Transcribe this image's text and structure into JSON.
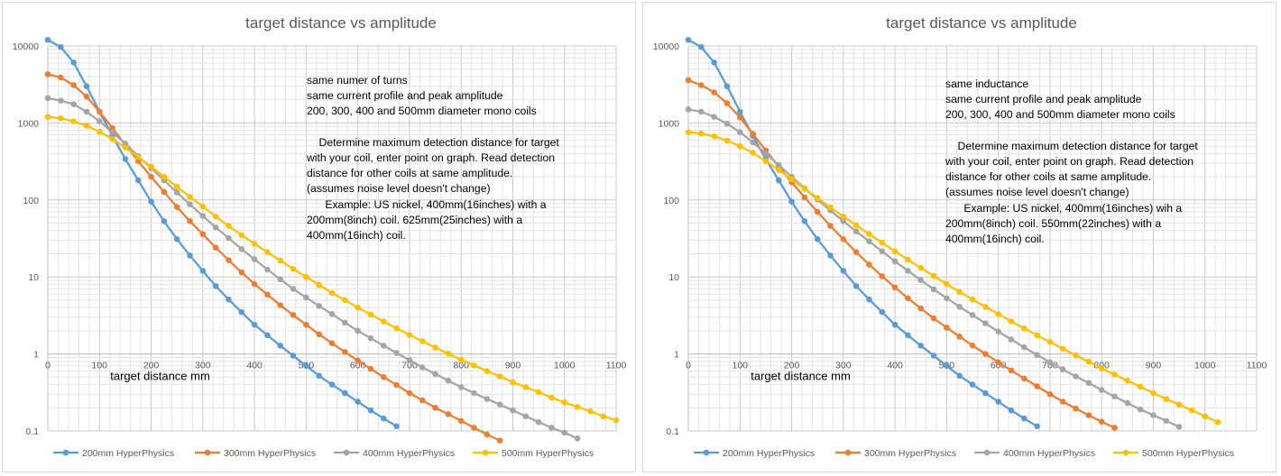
{
  "colors": {
    "series": [
      "#5b9bd5",
      "#ed7d31",
      "#a5a5a5",
      "#ffc000"
    ],
    "grid_major": "#c8c8c8",
    "grid_minor": "#e3e3e3",
    "text": "#595959"
  },
  "chart_data": [
    {
      "type": "line",
      "title": "target distance vs amplitude",
      "xlabel": "target distance mm",
      "ylabel": "",
      "xlim": [
        0,
        1100
      ],
      "ylim": [
        0.1,
        10000
      ],
      "y_scale": "log",
      "x_ticks": [
        "0",
        "100",
        "200",
        "300",
        "400",
        "500",
        "600",
        "700",
        "800",
        "900",
        "1000",
        "1100"
      ],
      "y_ticks": [
        "0.1",
        "1",
        "10",
        "100",
        "1000",
        "10000"
      ],
      "grid": true,
      "legend_position": "bottom",
      "annotations": [
        "same numer of turns",
        "same current profile and peak amplitude",
        "200, 300, 400 and 500mm diameter mono coils",
        "",
        "    Determine maximum detection distance for target",
        "with your coil, enter point on graph. Read detection",
        "distance for other coils at same amplitude.",
        "(assumes noise level doesn't change)",
        "      Example: US nickel, 400mm(16inches) with a",
        "200mm(8inch) coil. 625mm(25inches) with a",
        "400mm(16inch) coil."
      ],
      "series": [
        {
          "name": "200mm HyperPhysics",
          "x": [
            0,
            25,
            50,
            75,
            100,
            125,
            150,
            175,
            200,
            225,
            250,
            275,
            300,
            325,
            350,
            375,
            400,
            425,
            450,
            475,
            500,
            525,
            550,
            575,
            600,
            625,
            650,
            675
          ],
          "y": [
            12000,
            9700,
            6100,
            3000,
            1400,
            680,
            340,
            180,
            95,
            53,
            31,
            19,
            12,
            7.6,
            5.1,
            3.5,
            2.4,
            1.75,
            1.28,
            0.95,
            0.7,
            0.52,
            0.4,
            0.31,
            0.24,
            0.185,
            0.145,
            0.115
          ]
        },
        {
          "name": "300mm HyperPhysics",
          "x": [
            0,
            25,
            50,
            75,
            100,
            125,
            150,
            175,
            200,
            225,
            250,
            275,
            300,
            325,
            350,
            375,
            400,
            425,
            450,
            475,
            500,
            525,
            550,
            575,
            600,
            625,
            650,
            675,
            700,
            725,
            750,
            775,
            800,
            825,
            850,
            875
          ],
          "y": [
            4300,
            3900,
            3100,
            2200,
            1400,
            860,
            520,
            320,
            200,
            127,
            81,
            53,
            36,
            24,
            16.5,
            11.5,
            8.1,
            5.9,
            4.3,
            3.2,
            2.4,
            1.8,
            1.38,
            1.06,
            0.82,
            0.64,
            0.5,
            0.395,
            0.31,
            0.25,
            0.2,
            0.165,
            0.135,
            0.11,
            0.09,
            0.075
          ]
        },
        {
          "name": "400mm HyperPhysics",
          "x": [
            0,
            25,
            50,
            75,
            100,
            125,
            150,
            175,
            200,
            225,
            250,
            275,
            300,
            325,
            350,
            375,
            400,
            425,
            450,
            475,
            500,
            525,
            550,
            575,
            600,
            625,
            650,
            675,
            700,
            725,
            750,
            775,
            800,
            825,
            850,
            875,
            900,
            925,
            950,
            975,
            1000,
            1025
          ],
          "y": [
            2100,
            1950,
            1750,
            1400,
            1050,
            760,
            540,
            370,
            260,
            180,
            125,
            88,
            62,
            44,
            32,
            23,
            17,
            12.5,
            9.3,
            7,
            5.4,
            4.2,
            3.3,
            2.55,
            2,
            1.6,
            1.28,
            1.03,
            0.83,
            0.67,
            0.55,
            0.45,
            0.37,
            0.31,
            0.26,
            0.22,
            0.185,
            0.155,
            0.13,
            0.11,
            0.095,
            0.08
          ]
        },
        {
          "name": "500mm HyperPhysics",
          "x": [
            0,
            25,
            50,
            75,
            100,
            125,
            150,
            175,
            200,
            225,
            250,
            275,
            300,
            325,
            350,
            375,
            400,
            425,
            450,
            475,
            500,
            525,
            550,
            575,
            600,
            625,
            650,
            675,
            700,
            725,
            750,
            775,
            800,
            825,
            850,
            875,
            900,
            925,
            950,
            975,
            1000,
            1025,
            1050,
            1075,
            1100
          ],
          "y": [
            1200,
            1150,
            1050,
            920,
            770,
            620,
            480,
            360,
            270,
            200,
            148,
            110,
            82,
            61,
            46,
            35,
            27,
            21,
            16.3,
            12.7,
            10,
            7.9,
            6.2,
            5,
            4,
            3.25,
            2.65,
            2.15,
            1.77,
            1.46,
            1.21,
            1.01,
            0.84,
            0.71,
            0.6,
            0.51,
            0.43,
            0.37,
            0.32,
            0.27,
            0.235,
            0.205,
            0.18,
            0.155,
            0.138
          ]
        }
      ]
    },
    {
      "type": "line",
      "title": "target distance vs amplitude",
      "xlabel": "target distance mm",
      "ylabel": "",
      "xlim": [
        0,
        1100
      ],
      "ylim": [
        0.1,
        10000
      ],
      "y_scale": "log",
      "x_ticks": [
        "0",
        "100",
        "200",
        "300",
        "400",
        "500",
        "600",
        "700",
        "800",
        "900",
        "1000",
        "1100"
      ],
      "y_ticks": [
        "0.1",
        "1",
        "10",
        "100",
        "1000",
        "10000"
      ],
      "grid": true,
      "legend_position": "bottom",
      "annotations": [
        "same inductance",
        "same current profile and peak amplitude",
        "200, 300, 400 and 500mm diameter mono coils",
        "",
        "    Determine maximum detection distance for target",
        "with your coil, enter point on graph. Read detection",
        "distance for other coils at same amplitude.",
        "(assumes noise level doesn't change)",
        "      Example: US nickel, 400mm(16inches) wih a",
        "200mm(8inch) coil. 550mm(22inches) with a",
        "400mm(16inch) coil."
      ],
      "series": [
        {
          "name": "200mm HyperPhysics",
          "x": [
            0,
            25,
            50,
            75,
            100,
            125,
            150,
            175,
            200,
            225,
            250,
            275,
            300,
            325,
            350,
            375,
            400,
            425,
            450,
            475,
            500,
            525,
            550,
            575,
            600,
            625,
            650,
            675
          ],
          "y": [
            12000,
            9700,
            6100,
            3000,
            1400,
            680,
            340,
            180,
            95,
            53,
            31,
            19,
            12,
            7.6,
            5.1,
            3.5,
            2.4,
            1.75,
            1.28,
            0.95,
            0.7,
            0.52,
            0.4,
            0.31,
            0.24,
            0.185,
            0.145,
            0.115
          ]
        },
        {
          "name": "300mm HyperPhysics",
          "x": [
            0,
            25,
            50,
            75,
            100,
            125,
            150,
            175,
            200,
            225,
            250,
            275,
            300,
            325,
            350,
            375,
            400,
            425,
            450,
            475,
            500,
            525,
            550,
            575,
            600,
            625,
            650,
            675,
            700,
            725,
            750,
            775,
            800,
            825
          ],
          "y": [
            3600,
            3100,
            2500,
            1800,
            1180,
            720,
            440,
            270,
            170,
            108,
            70,
            46,
            31,
            21,
            14.5,
            10.2,
            7.3,
            5.3,
            3.9,
            2.9,
            2.2,
            1.68,
            1.29,
            1,
            0.78,
            0.61,
            0.48,
            0.38,
            0.3,
            0.24,
            0.195,
            0.16,
            0.132,
            0.11
          ]
        },
        {
          "name": "400mm HyperPhysics",
          "x": [
            0,
            25,
            50,
            75,
            100,
            125,
            150,
            175,
            200,
            225,
            250,
            275,
            300,
            325,
            350,
            375,
            400,
            425,
            450,
            475,
            500,
            525,
            550,
            575,
            600,
            625,
            650,
            675,
            700,
            725,
            750,
            775,
            800,
            825,
            850,
            875,
            900,
            925,
            950
          ],
          "y": [
            1500,
            1400,
            1200,
            980,
            760,
            560,
            400,
            285,
            200,
            142,
            101,
            73,
            53,
            39,
            29,
            21.5,
            16,
            12,
            9.1,
            6.9,
            5.3,
            4.1,
            3.2,
            2.5,
            1.95,
            1.54,
            1.22,
            0.97,
            0.78,
            0.63,
            0.51,
            0.42,
            0.34,
            0.28,
            0.23,
            0.19,
            0.16,
            0.135,
            0.113
          ]
        },
        {
          "name": "500mm HyperPhysics",
          "x": [
            0,
            25,
            50,
            75,
            100,
            125,
            150,
            175,
            200,
            225,
            250,
            275,
            300,
            325,
            350,
            375,
            400,
            425,
            450,
            475,
            500,
            525,
            550,
            575,
            600,
            625,
            650,
            675,
            700,
            725,
            750,
            775,
            800,
            825,
            850,
            875,
            900,
            925,
            950,
            975,
            1000,
            1025
          ],
          "y": [
            760,
            730,
            670,
            590,
            500,
            410,
            320,
            245,
            185,
            140,
            106,
            80,
            61,
            47,
            36,
            28,
            21.5,
            16.8,
            13.1,
            10.3,
            8.1,
            6.4,
            5.1,
            4.1,
            3.3,
            2.65,
            2.15,
            1.75,
            1.43,
            1.17,
            0.96,
            0.79,
            0.65,
            0.54,
            0.45,
            0.375,
            0.31,
            0.26,
            0.22,
            0.185,
            0.155,
            0.13
          ]
        }
      ]
    }
  ]
}
